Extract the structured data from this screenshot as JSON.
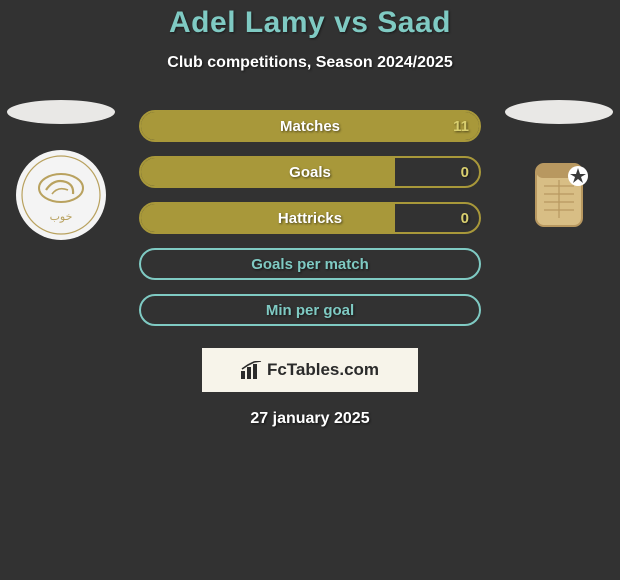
{
  "title": "Adel Lamy vs Saad",
  "title_color": "#7fcac3",
  "subtitle": "Club competitions, Season 2024/2025",
  "background_color": "#323232",
  "date": "27 january 2025",
  "brand": {
    "text": "FcTables.com",
    "bg": "#f7f4ea"
  },
  "left_team": {
    "oval_color": "#e9e8e6",
    "badge_bg": "#f4f4f4",
    "badge_accent": "#b9a25f"
  },
  "right_team": {
    "oval_color": "#e9e8e6",
    "badge_bg": "transparent",
    "badge_accent": "#c9a86a"
  },
  "comparison": {
    "bar_bg_color": "#a8983a",
    "border_colors": [
      "#a8983a",
      "#a8983a",
      "#a8983a",
      "#7fcac3",
      "#7fcac3"
    ],
    "label_colors": [
      "#ffffff",
      "#ffffff",
      "#ffffff",
      "#7fcac3",
      "#7fcac3"
    ],
    "value_colors": [
      "#d9cf6f",
      "#d9cf6f",
      "#d9cf6f",
      "#7fcac3",
      "#7fcac3"
    ],
    "fill_widths_pct": [
      100,
      75,
      75,
      0,
      0
    ],
    "rows": [
      {
        "label": "Matches",
        "value_right": "11"
      },
      {
        "label": "Goals",
        "value_right": "0"
      },
      {
        "label": "Hattricks",
        "value_right": "0"
      },
      {
        "label": "Goals per match",
        "value_right": ""
      },
      {
        "label": "Min per goal",
        "value_right": ""
      }
    ]
  }
}
